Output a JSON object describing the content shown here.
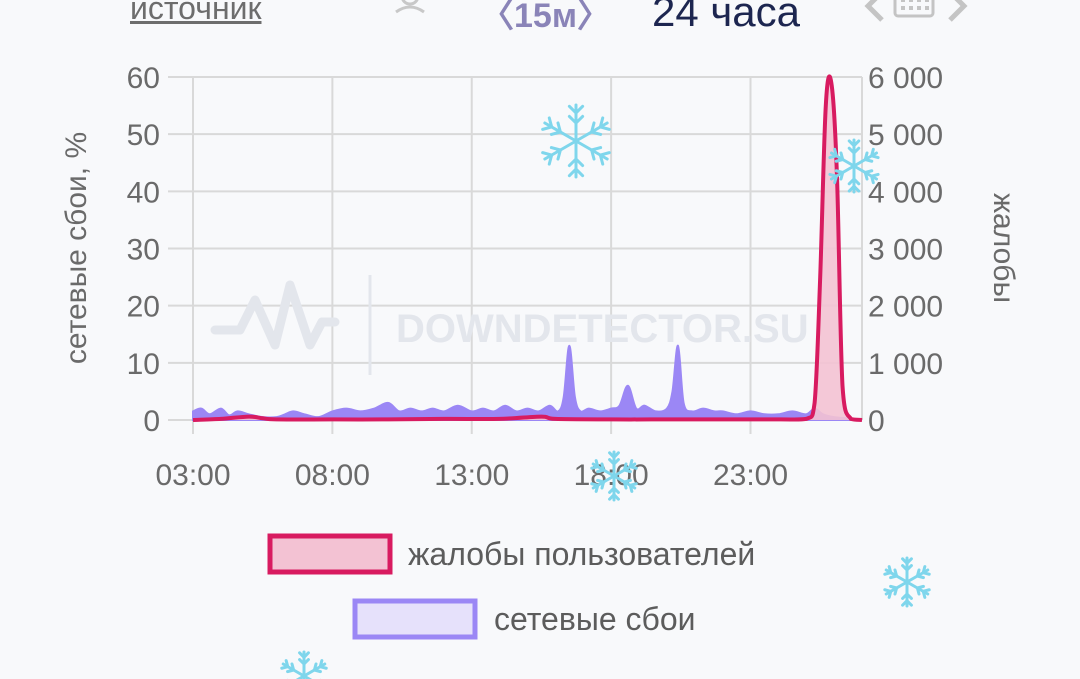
{
  "header": {
    "source_label": "источник",
    "user_icon": "user-icon",
    "interval_label": "〈15м〉",
    "range_label": "24 часа",
    "prev_icon": "chevron-left-icon",
    "calendar_icon": "calendar-icon",
    "next_icon": "chevron-right-icon"
  },
  "watermark": {
    "text": "DOWNDETECTOR.SU",
    "icon": "pulse-logo-icon"
  },
  "colors": {
    "complaints": "#d81b60",
    "complaints_fill": "#f3c2d3",
    "failures": "#9b87f5",
    "grid": "#d9d9d9",
    "snowflake": "#7fd6ec"
  },
  "chart_data": {
    "type": "area",
    "xlabel": "",
    "x_ticks": [
      "03:00",
      "08:00",
      "13:00",
      "18:00",
      "23:00"
    ],
    "x_tick_hours": [
      3,
      8,
      13,
      18,
      23
    ],
    "xlim": [
      3,
      27
    ],
    "y_left": {
      "label": "сетевые сбои, %",
      "ticks": [
        "0",
        "10",
        "20",
        "30",
        "40",
        "50",
        "60"
      ],
      "lim": [
        0,
        60
      ]
    },
    "y_right": {
      "label": "жалобы",
      "ticks": [
        "0",
        "1 000",
        "2 000",
        "3 000",
        "4 000",
        "5 000",
        "6 000"
      ],
      "lim": [
        0,
        6000
      ]
    },
    "grid": true,
    "legend_position": "bottom",
    "series": [
      {
        "name": "жалобы пользователей",
        "axis": "right",
        "x": [
          3,
          4,
          5,
          5.5,
          6,
          8,
          10,
          12,
          14,
          15.5,
          16,
          18,
          20,
          22,
          24,
          25,
          25.3,
          25.5,
          25.7,
          25.9,
          26.1,
          26.3,
          26.6,
          27
        ],
        "values": [
          0,
          20,
          60,
          30,
          10,
          10,
          10,
          20,
          20,
          60,
          20,
          10,
          10,
          10,
          10,
          20,
          300,
          2500,
          5500,
          5900,
          4300,
          600,
          20,
          0
        ]
      },
      {
        "name": "сетевые сбои",
        "axis": "left",
        "x": [
          3,
          3.3,
          3.6,
          4,
          4.3,
          4.6,
          5,
          5.5,
          6,
          6.3,
          6.6,
          7,
          7.5,
          8,
          8.5,
          9,
          9.5,
          10,
          10.4,
          10.8,
          11.2,
          11.6,
          12,
          12.5,
          13,
          13.4,
          13.8,
          14.2,
          14.6,
          15,
          15.4,
          15.8,
          16.1,
          16.3,
          16.5,
          16.7,
          16.9,
          17.2,
          17.6,
          18,
          18.3,
          18.6,
          18.9,
          19.2,
          19.6,
          20,
          20.2,
          20.4,
          20.6,
          20.9,
          21.3,
          21.7,
          22,
          22.5,
          23,
          23.5,
          24,
          24.5,
          25,
          25.3,
          25.6,
          26,
          26.5,
          27
        ],
        "values": [
          1.5,
          2,
          1,
          2,
          0.8,
          1.5,
          1,
          0.5,
          0.5,
          1,
          1.5,
          1,
          0.5,
          1.5,
          2,
          1.5,
          2,
          3,
          1.5,
          2,
          1.5,
          2,
          1.5,
          2.5,
          1.5,
          2,
          1.5,
          2.5,
          1.5,
          2,
          1.5,
          2.5,
          1.5,
          4,
          13,
          4,
          1.5,
          2,
          1.5,
          2,
          2.5,
          6,
          2,
          2.5,
          1.5,
          2,
          5,
          13,
          3,
          1.5,
          2,
          1.5,
          1.5,
          1,
          1.5,
          1,
          1,
          1.5,
          1,
          2,
          1,
          0.5,
          0.3,
          0
        ]
      }
    ]
  }
}
